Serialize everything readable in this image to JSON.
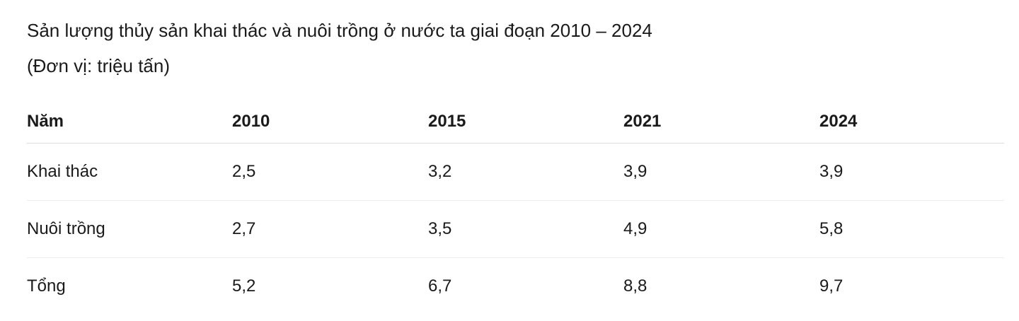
{
  "title": "Sản lượng thủy sản khai thác và nuôi trồng ở nước ta giai đoạn 2010 – 2024",
  "unit": "(Đơn vị: triệu tấn)",
  "table": {
    "headers": [
      "Năm",
      "2010",
      "2015",
      "2021",
      "2024"
    ],
    "rows": [
      [
        "Khai thác",
        "2,5",
        "3,2",
        "3,9",
        "3,9"
      ],
      [
        "Nuôi trồng",
        "2,7",
        "3,5",
        "4,9",
        "5,8"
      ],
      [
        "Tổng",
        "5,2",
        "6,7",
        "8,8",
        "9,7"
      ]
    ]
  }
}
